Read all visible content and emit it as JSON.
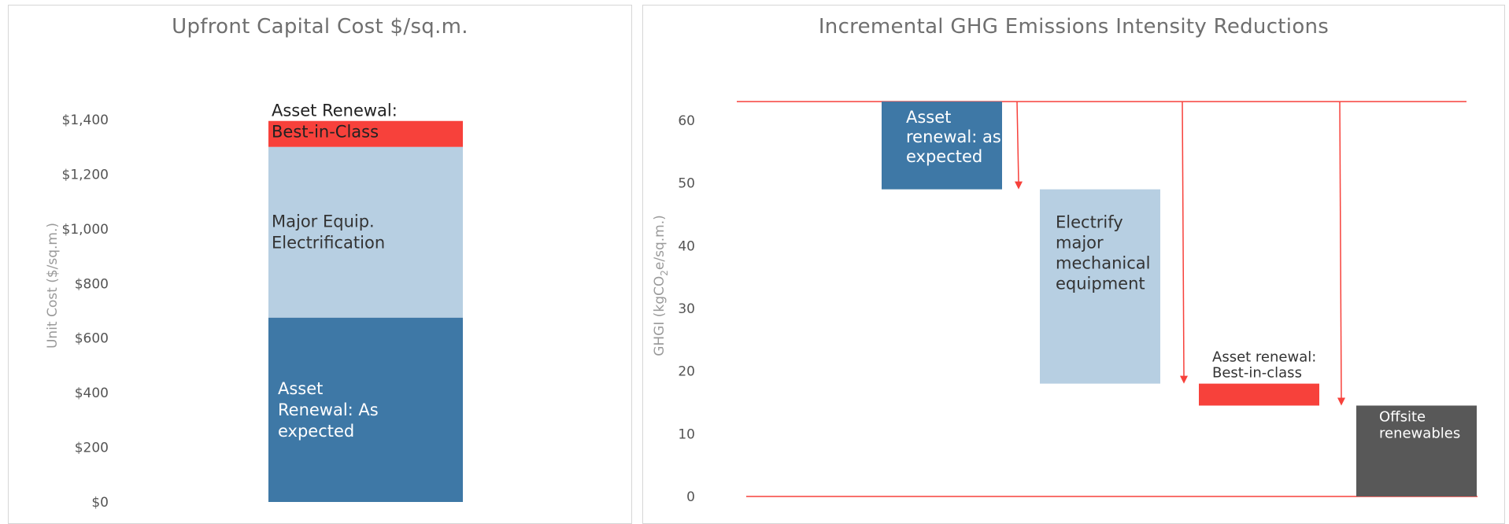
{
  "charts": {
    "capital": {
      "title": "Upfront Capital Cost $/sq.m.",
      "ylabel": "Unit Cost ($/sq.m.)",
      "ytick_labels": [
        "$0",
        "$200",
        "$400",
        "$600",
        "$800",
        "$1,000",
        "$1,200",
        "$1,400"
      ],
      "segments": [
        {
          "label_lines": [
            "Asset",
            "Renewal: As",
            "expected"
          ]
        },
        {
          "label_lines": [
            "Major Equip.",
            "Electrification"
          ]
        },
        {
          "label_lines": [
            "Asset Renewal:",
            "Best-in-Class"
          ]
        }
      ]
    },
    "ghgi": {
      "title": "Incremental GHG Emissions Intensity Reductions",
      "ylabel_parts": [
        "GHGI (kgCO",
        "2",
        "e/sq.m.)"
      ],
      "ytick_labels": [
        "0",
        "10",
        "20",
        "30",
        "40",
        "50",
        "60"
      ],
      "steps": [
        {
          "label_lines": [
            "Asset",
            "renewal: as",
            "expected"
          ]
        },
        {
          "label_lines": [
            "Electrify",
            "major",
            "mechanical",
            "equipment"
          ]
        },
        {
          "label_lines": [
            "Asset renewal:",
            "Best-in-class"
          ]
        },
        {
          "label_lines": [
            "Offsite",
            "renewables"
          ]
        }
      ]
    }
  },
  "chart_data": [
    {
      "type": "bar",
      "stacked": true,
      "title": "Upfront Capital Cost $/sq.m.",
      "ylabel": "Unit Cost ($/sq.m.)",
      "ylim": [
        0,
        1400
      ],
      "yticks": [
        0,
        200,
        400,
        600,
        800,
        1000,
        1200,
        1400
      ],
      "series": [
        {
          "name": "Asset Renewal: As expected",
          "value": 675,
          "color": "#3e78a6"
        },
        {
          "name": "Major Equip. Electrification",
          "value": 625,
          "color": "#b7cfe2"
        },
        {
          "name": "Asset Renewal: Best-in-Class",
          "value": 95,
          "color": "#f7413b"
        }
      ]
    },
    {
      "type": "bar",
      "subtype": "waterfall",
      "title": "Incremental GHG Emissions Intensity Reductions",
      "ylabel": "GHGI (kgCO2e/sq.m.)",
      "ylim": [
        0,
        60
      ],
      "yticks": [
        0,
        10,
        20,
        30,
        40,
        50,
        60
      ],
      "baseline": 63,
      "steps": [
        {
          "name": "Asset renewal: as expected",
          "from": 63,
          "to": 49,
          "color": "#3e78a6"
        },
        {
          "name": "Electrify major mechanical equipment",
          "from": 49,
          "to": 18,
          "color": "#b7cfe2"
        },
        {
          "name": "Asset renewal: Best-in-class",
          "from": 18,
          "to": 14.5,
          "color": "#f7413b"
        },
        {
          "name": "Offsite renewables",
          "from": 14.5,
          "to": 0,
          "color": "#585858"
        }
      ],
      "line_color": "#f7413b"
    }
  ]
}
